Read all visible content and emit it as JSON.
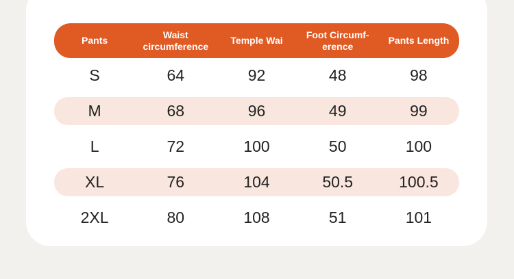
{
  "table": {
    "header": [
      "Pants",
      "Waist\ncircumference",
      "Temple Wai",
      "Foot Circumf-\nerence",
      "Pants Length"
    ],
    "rows": [
      [
        "S",
        "64",
        "92",
        "48",
        "98"
      ],
      [
        "M",
        "68",
        "96",
        "49",
        "99"
      ],
      [
        "L",
        "72",
        "100",
        "50",
        "100"
      ],
      [
        "XL",
        "76",
        "104",
        "50.5",
        "100.5"
      ],
      [
        "2XL",
        "80",
        "108",
        "51",
        "101"
      ]
    ]
  }
}
